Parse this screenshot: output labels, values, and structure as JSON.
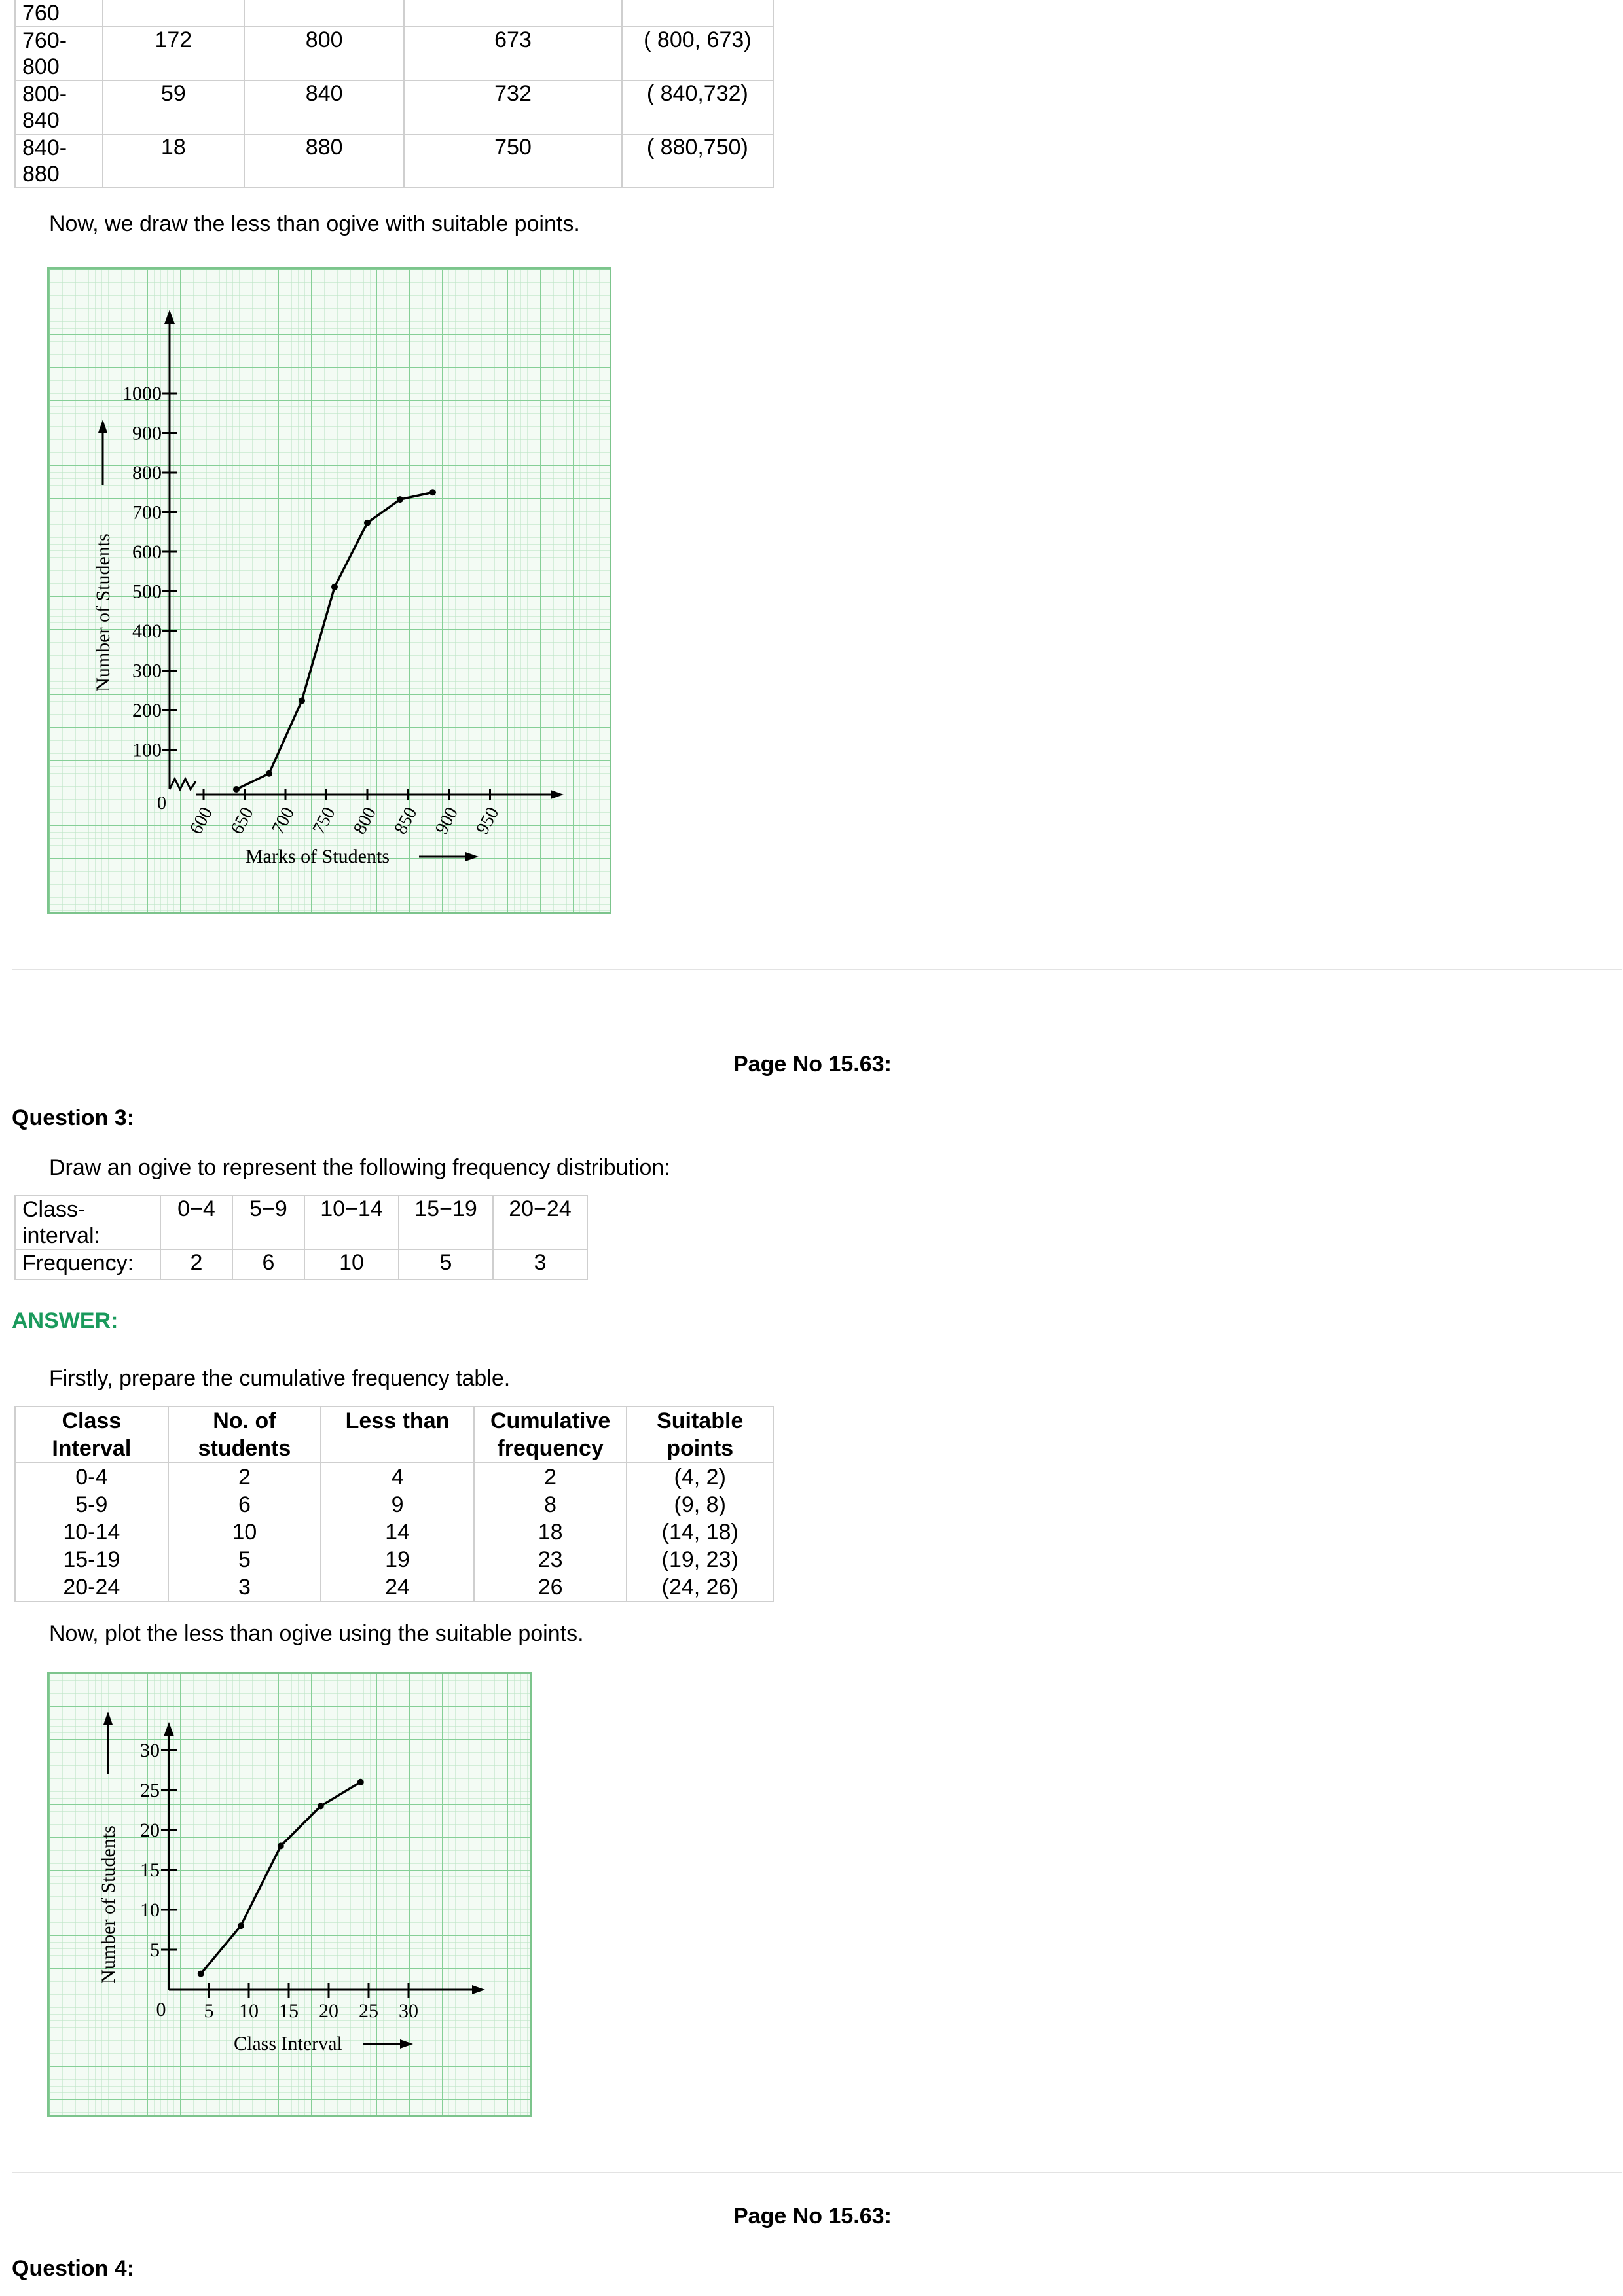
{
  "table1": {
    "first_label": "760",
    "rows": [
      {
        "class_top": "760-",
        "class_bottom": "800",
        "freq": "172",
        "upper": "800",
        "cf": "673",
        "point": "( 800, 673)"
      },
      {
        "class_top": "800-",
        "class_bottom": "840",
        "freq": "59",
        "upper": "840",
        "cf": "732",
        "point": "( 840,732)"
      },
      {
        "class_top": "840-",
        "class_bottom": "880",
        "freq": "18",
        "upper": "880",
        "cf": "750",
        "point": "( 880,750)"
      }
    ]
  },
  "text_draw_ogive": "Now, we draw the less than ogive with suitable points.",
  "graph1": {
    "ylabel": "Number of Students",
    "xlabel": "Marks of Students",
    "origin_label": "0",
    "y_ticks": [
      "100",
      "200",
      "300",
      "400",
      "500",
      "600",
      "700",
      "800",
      "900",
      "1000"
    ],
    "x_ticks": [
      "600",
      "650",
      "700",
      "750",
      "800",
      "850",
      "900",
      "950"
    ],
    "points": [
      [
        640,
        0
      ],
      [
        680,
        40
      ],
      [
        720,
        224
      ],
      [
        760,
        511
      ],
      [
        800,
        673
      ],
      [
        840,
        732
      ],
      [
        880,
        750
      ]
    ]
  },
  "page_no_1": "Page No 15.63:",
  "question3": {
    "heading": "Question 3:",
    "prompt": "Draw an ogive to represent the following frequency distribution:",
    "row1_label_a": "Class-",
    "row1_label_b": "interval:",
    "row2_label": "Frequency:",
    "intervals": [
      "0−4",
      "5−9",
      "10−14",
      "15−19",
      "20−24"
    ],
    "frequencies": [
      "2",
      "6",
      "10",
      "5",
      "3"
    ]
  },
  "answer_label": "ANSWER:",
  "text_prepare": "Firstly, prepare the cumulative frequency table.",
  "table2": {
    "headers": [
      {
        "a": "Class",
        "b": "Interval"
      },
      {
        "a": "No. of",
        "b": "students"
      },
      {
        "a": "Less than",
        "b": ""
      },
      {
        "a": "Cumulative",
        "b": "frequency"
      },
      {
        "a": "Suitable",
        "b": "points"
      }
    ],
    "rows": [
      [
        "0-4",
        "2",
        "4",
        "2",
        "(4, 2)"
      ],
      [
        "5-9",
        "6",
        "9",
        "8",
        "(9, 8)"
      ],
      [
        "10-14",
        "10",
        "14",
        "18",
        "(14, 18)"
      ],
      [
        "15-19",
        "5",
        "19",
        "23",
        "(19, 23)"
      ],
      [
        "20-24",
        "3",
        "24",
        "26",
        "(24, 26)"
      ]
    ]
  },
  "text_plot": "Now, plot the less than ogive using the suitable points.",
  "graph2": {
    "ylabel": "Number of Students",
    "xlabel": "Class Interval",
    "origin_label": "0",
    "y_ticks": [
      "5",
      "10",
      "15",
      "20",
      "25",
      "30"
    ],
    "x_ticks": [
      "5",
      "10",
      "15",
      "20",
      "25",
      "30"
    ],
    "points": [
      [
        4,
        2
      ],
      [
        9,
        8
      ],
      [
        14,
        18
      ],
      [
        19,
        23
      ],
      [
        24,
        26
      ]
    ]
  },
  "page_no_2": "Page No 15.63:",
  "question4_heading": "Question 4:"
}
